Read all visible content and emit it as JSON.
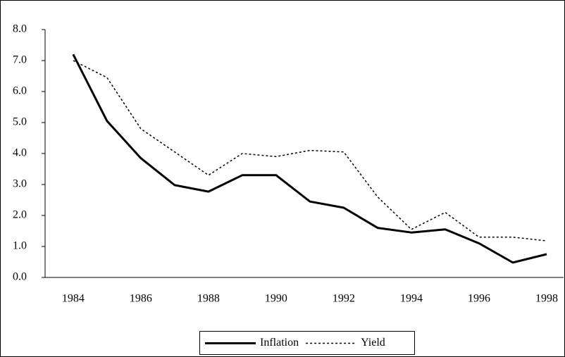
{
  "chart_data": {
    "type": "line",
    "x": [
      1984,
      1985,
      1986,
      1987,
      1988,
      1989,
      1990,
      1991,
      1992,
      1993,
      1994,
      1995,
      1996,
      1997,
      1998
    ],
    "series": [
      {
        "name": "Inflation",
        "color": "#000000",
        "dash": "solid",
        "values": [
          7.2,
          5.05,
          3.85,
          2.98,
          2.77,
          3.3,
          3.3,
          2.45,
          2.25,
          1.6,
          1.45,
          1.55,
          1.1,
          0.48,
          0.75
        ]
      },
      {
        "name": "Yield",
        "color": "#000000",
        "dash": "dotted",
        "values": [
          7.0,
          6.45,
          4.8,
          4.05,
          3.3,
          4.0,
          3.9,
          4.1,
          4.05,
          2.6,
          1.55,
          2.1,
          1.3,
          1.3,
          1.18
        ]
      }
    ],
    "xlim": [
      1983.17,
      1998.5
    ],
    "xticks": [
      1984,
      1986,
      1988,
      1990,
      1992,
      1994,
      1996,
      1998
    ],
    "ylim": [
      0,
      8
    ],
    "yticks": [
      {
        "value": 0,
        "label": "0.0"
      },
      {
        "value": 1,
        "label": "1.0"
      },
      {
        "value": 2,
        "label": "2.0"
      },
      {
        "value": 3,
        "label": "3.0"
      },
      {
        "value": 4,
        "label": "4.0"
      },
      {
        "value": 5,
        "label": "5.0"
      },
      {
        "value": 6,
        "label": "6.0"
      },
      {
        "value": 7,
        "label": "7.0"
      },
      {
        "value": 8,
        "label": "8.0"
      }
    ],
    "legend": "bottom"
  }
}
